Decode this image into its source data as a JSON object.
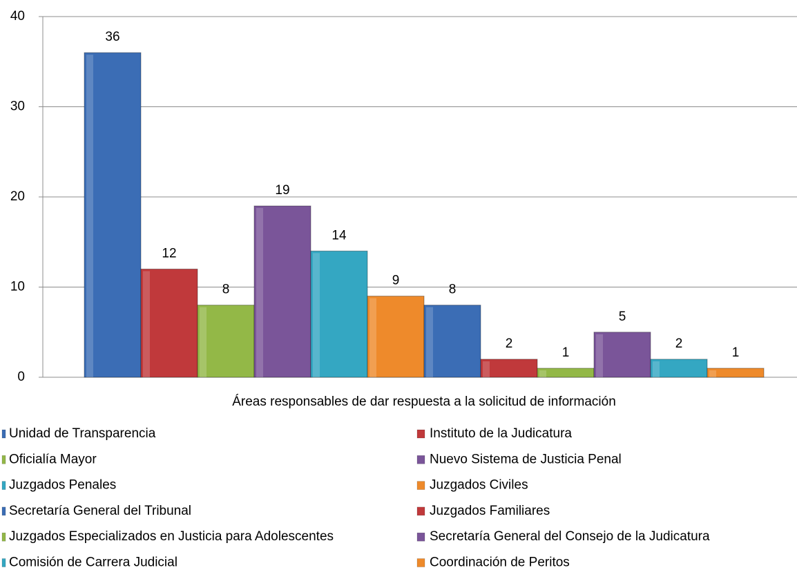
{
  "chart_data": {
    "type": "bar",
    "categories": [
      "Áreas responsables de dar respuesta a la solicitud de información"
    ],
    "ylim": [
      0,
      40
    ],
    "yticks": [
      0,
      10,
      20,
      30,
      40
    ],
    "grid": true,
    "legend": "bottom",
    "series": [
      {
        "name": "Unidad de Transparencia",
        "color": "#3b6db5",
        "values": [
          36
        ]
      },
      {
        "name": "Instituto de la Judicatura",
        "color": "#c0393b",
        "values": [
          12
        ]
      },
      {
        "name": "Oficialía Mayor",
        "color": "#93b847",
        "values": [
          8
        ]
      },
      {
        "name": "Nuevo Sistema de Justicia Penal",
        "color": "#7a5599",
        "values": [
          19
        ]
      },
      {
        "name": "Juzgados Penales",
        "color": "#34a7c2",
        "values": [
          14
        ]
      },
      {
        "name": "Juzgados Civiles",
        "color": "#ee8a2b",
        "values": [
          9
        ]
      },
      {
        "name": "Secretaría General del Tribunal",
        "color": "#3b6db5",
        "values": [
          8
        ]
      },
      {
        "name": "Juzgados Familiares",
        "color": "#c0393b",
        "values": [
          2
        ]
      },
      {
        "name": "Juzgados Especializados en Justicia para Adolescentes",
        "color": "#93b847",
        "values": [
          1
        ]
      },
      {
        "name": "Secretaría General del Consejo de la Judicatura",
        "color": "#7a5599",
        "values": [
          5
        ]
      },
      {
        "name": "Comisión de Carrera Judicial",
        "color": "#34a7c2",
        "values": [
          2
        ]
      },
      {
        "name": "Coordinación de Peritos",
        "color": "#ee8a2b",
        "values": [
          1
        ]
      }
    ]
  }
}
